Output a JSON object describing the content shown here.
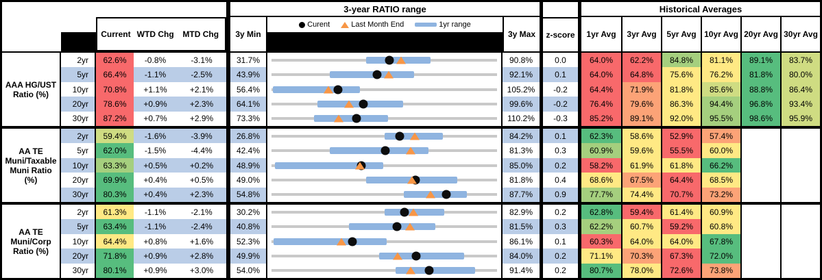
{
  "palette": {
    "red": "#F8696B",
    "orange": "#FCA377",
    "yellow": "#FFE984",
    "yellowgreen": "#CFDC82",
    "lightgreen": "#A5CF7E",
    "green": "#57BD7E",
    "stripe": "#BACDE7",
    "bar": "#8FB4E0",
    "track": "#C9C9C9",
    "triangle": "#F79646",
    "dot": "#000000"
  },
  "header": {
    "ratio_range_title": "3-year RATIO range",
    "hist_title": "Historical Averages",
    "columns": {
      "current": "Current",
      "wtd": "WTD Chg",
      "mtd": "MTD Chg",
      "min": "3y Min",
      "max": "3y Max",
      "zscore": "z-score"
    },
    "hist_columns": [
      "1yr Avg",
      "3yr Avg",
      "5yr Avg",
      "10yr Avg",
      "20yr Avg",
      "30yr Avg"
    ],
    "legend": {
      "current": "Curent",
      "last_month": "Last Month End",
      "range": "1yr range"
    }
  },
  "sections": [
    {
      "label_lines": [
        "AAA HG/UST",
        "Ratio (%)"
      ],
      "rows": [
        {
          "tenor": "2yr",
          "current": "62.6%",
          "current_color": "red",
          "wtd": "-0.8%",
          "mtd": "-3.1%",
          "min": "31.7%",
          "max": "90.8%",
          "zscore": "0.0",
          "chart": {
            "min": 31.7,
            "max": 90.8,
            "bar_low": 56.4,
            "bar_high": 73.4,
            "dot": 62.6,
            "tri": 65.7
          },
          "hist": [
            {
              "v": "64.0%",
              "c": "red"
            },
            {
              "v": "62.2%",
              "c": "red"
            },
            {
              "v": "84.8%",
              "c": "lightgreen"
            },
            {
              "v": "81.1%",
              "c": "yellow"
            },
            {
              "v": "89.1%",
              "c": "green"
            },
            {
              "v": "83.7%",
              "c": "yellowgreen"
            }
          ]
        },
        {
          "tenor": "5yr",
          "current": "66.4%",
          "current_color": "red",
          "wtd": "-1.1%",
          "mtd": "-2.5%",
          "min": "43.9%",
          "max": "92.1%",
          "zscore": "0.1",
          "chart": {
            "min": 43.9,
            "max": 92.1,
            "bar_low": 56.4,
            "bar_high": 74.4,
            "dot": 66.4,
            "tri": 68.9
          },
          "hist": [
            {
              "v": "64.0%",
              "c": "red"
            },
            {
              "v": "64.8%",
              "c": "red"
            },
            {
              "v": "75.6%",
              "c": "yellow"
            },
            {
              "v": "76.2%",
              "c": "yellow"
            },
            {
              "v": "81.8%",
              "c": "green"
            },
            {
              "v": "80.0%",
              "c": "yellowgreen"
            }
          ]
        },
        {
          "tenor": "10yr",
          "current": "70.8%",
          "current_color": "red",
          "wtd": "+1.1%",
          "mtd": "+2.1%",
          "min": "56.4%",
          "max": "105.2%",
          "zscore": "-0.2",
          "chart": {
            "min": 56.4,
            "max": 105.2,
            "bar_low": 56.7,
            "bar_high": 75.6,
            "dot": 70.8,
            "tri": 68.7
          },
          "hist": [
            {
              "v": "64.4%",
              "c": "red"
            },
            {
              "v": "71.9%",
              "c": "orange"
            },
            {
              "v": "81.8%",
              "c": "yellow"
            },
            {
              "v": "85.6%",
              "c": "yellowgreen"
            },
            {
              "v": "88.8%",
              "c": "green"
            },
            {
              "v": "86.4%",
              "c": "yellowgreen"
            }
          ]
        },
        {
          "tenor": "20yr",
          "current": "78.6%",
          "current_color": "red",
          "wtd": "+0.9%",
          "mtd": "+2.3%",
          "min": "64.1%",
          "max": "99.6%",
          "zscore": "-0.2",
          "chart": {
            "min": 64.1,
            "max": 99.6,
            "bar_low": 71.3,
            "bar_high": 84.8,
            "dot": 78.6,
            "tri": 76.3
          },
          "hist": [
            {
              "v": "76.4%",
              "c": "red"
            },
            {
              "v": "79.6%",
              "c": "orange"
            },
            {
              "v": "86.3%",
              "c": "yellow"
            },
            {
              "v": "94.4%",
              "c": "lightgreen"
            },
            {
              "v": "96.8%",
              "c": "green"
            },
            {
              "v": "93.4%",
              "c": "yellowgreen"
            }
          ]
        },
        {
          "tenor": "30yr",
          "current": "87.2%",
          "current_color": "red",
          "wtd": "+0.7%",
          "mtd": "+2.9%",
          "min": "73.3%",
          "max": "110.2%",
          "zscore": "-0.3",
          "chart": {
            "min": 73.3,
            "max": 110.2,
            "bar_low": 80.2,
            "bar_high": 92.4,
            "dot": 87.2,
            "tri": 84.3
          },
          "hist": [
            {
              "v": "85.2%",
              "c": "red"
            },
            {
              "v": "89.1%",
              "c": "orange"
            },
            {
              "v": "92.0%",
              "c": "yellow"
            },
            {
              "v": "95.5%",
              "c": "lightgreen"
            },
            {
              "v": "98.6%",
              "c": "green"
            },
            {
              "v": "95.9%",
              "c": "yellowgreen"
            }
          ]
        }
      ]
    },
    {
      "label_lines": [
        "AA TE",
        "Muni/Taxable",
        "Muni Ratio",
        "(%)"
      ],
      "rows": [
        {
          "tenor": "2yr",
          "current": "59.4%",
          "current_color": "yellowgreen",
          "wtd": "-1.6%",
          "mtd": "-3.9%",
          "min": "26.8%",
          "max": "84.2%",
          "zscore": "0.1",
          "chart": {
            "min": 26.8,
            "max": 84.2,
            "bar_low": 55.5,
            "bar_high": 70.4,
            "dot": 59.4,
            "tri": 63.3
          },
          "hist": [
            {
              "v": "62.3%",
              "c": "green"
            },
            {
              "v": "58.6%",
              "c": "yellow"
            },
            {
              "v": "52.9%",
              "c": "red"
            },
            {
              "v": "57.4%",
              "c": "orange"
            },
            {
              "v": "",
              "c": null
            },
            {
              "v": "",
              "c": null
            }
          ]
        },
        {
          "tenor": "5yr",
          "current": "62.0%",
          "current_color": "green",
          "wtd": "-1.5%",
          "mtd": "-4.4%",
          "min": "42.4%",
          "max": "81.3%",
          "zscore": "0.3",
          "chart": {
            "min": 42.4,
            "max": 81.3,
            "bar_low": 52.5,
            "bar_high": 69.5,
            "dot": 62.0,
            "tri": 66.4
          },
          "hist": [
            {
              "v": "60.9%",
              "c": "lightgreen"
            },
            {
              "v": "59.6%",
              "c": "yellow"
            },
            {
              "v": "55.5%",
              "c": "red"
            },
            {
              "v": "60.0%",
              "c": "yellow"
            },
            {
              "v": "",
              "c": null
            },
            {
              "v": "",
              "c": null
            }
          ]
        },
        {
          "tenor": "10yr",
          "current": "63.3%",
          "current_color": "lightgreen",
          "wtd": "+0.5%",
          "mtd": "+0.2%",
          "min": "48.9%",
          "max": "85.0%",
          "zscore": "0.2",
          "chart": {
            "min": 48.9,
            "max": 85.0,
            "bar_low": 49.5,
            "bar_high": 66.8,
            "dot": 63.3,
            "tri": 63.1
          },
          "hist": [
            {
              "v": "58.2%",
              "c": "red"
            },
            {
              "v": "61.9%",
              "c": "yellow"
            },
            {
              "v": "61.8%",
              "c": "yellow"
            },
            {
              "v": "66.2%",
              "c": "green"
            },
            {
              "v": "",
              "c": null
            },
            {
              "v": "",
              "c": null
            }
          ]
        },
        {
          "tenor": "20yr",
          "current": "69.9%",
          "current_color": "green",
          "wtd": "+0.4%",
          "mtd": "+0.5%",
          "min": "49.0%",
          "max": "81.8%",
          "zscore": "0.4",
          "chart": {
            "min": 49.0,
            "max": 81.8,
            "bar_low": 62.8,
            "bar_high": 76.0,
            "dot": 69.9,
            "tri": 69.4
          },
          "hist": [
            {
              "v": "68.6%",
              "c": "yellow"
            },
            {
              "v": "67.5%",
              "c": "orange"
            },
            {
              "v": "64.4%",
              "c": "red"
            },
            {
              "v": "68.5%",
              "c": "yellow"
            },
            {
              "v": "",
              "c": null
            },
            {
              "v": "",
              "c": null
            }
          ]
        },
        {
          "tenor": "30yr",
          "current": "80.3%",
          "current_color": "green",
          "wtd": "+0.4%",
          "mtd": "+2.3%",
          "min": "54.8%",
          "max": "87.7%",
          "zscore": "0.9",
          "chart": {
            "min": 54.8,
            "max": 87.7,
            "bar_low": 74.1,
            "bar_high": 83.3,
            "dot": 80.3,
            "tri": 78.0
          },
          "hist": [
            {
              "v": "77.7%",
              "c": "lightgreen"
            },
            {
              "v": "74.4%",
              "c": "yellow"
            },
            {
              "v": "70.7%",
              "c": "red"
            },
            {
              "v": "73.2%",
              "c": "orange"
            },
            {
              "v": "",
              "c": null
            },
            {
              "v": "",
              "c": null
            }
          ]
        }
      ]
    },
    {
      "label_lines": [
        "AA TE",
        "Muni/Corp",
        "Ratio (%)"
      ],
      "rows": [
        {
          "tenor": "2yr",
          "current": "61.3%",
          "current_color": "yellow",
          "wtd": "-1.1%",
          "mtd": "-2.1%",
          "min": "30.2%",
          "max": "82.9%",
          "zscore": "0.2",
          "chart": {
            "min": 30.2,
            "max": 82.9,
            "bar_low": 56.6,
            "bar_high": 70.6,
            "dot": 61.3,
            "tri": 63.4
          },
          "hist": [
            {
              "v": "62.8%",
              "c": "green"
            },
            {
              "v": "59.4%",
              "c": "red"
            },
            {
              "v": "61.4%",
              "c": "yellow"
            },
            {
              "v": "60.9%",
              "c": "yellow"
            },
            {
              "v": "",
              "c": null
            },
            {
              "v": "",
              "c": null
            }
          ]
        },
        {
          "tenor": "5yr",
          "current": "63.4%",
          "current_color": "green",
          "wtd": "-1.1%",
          "mtd": "-2.4%",
          "min": "40.8%",
          "max": "81.5%",
          "zscore": "0.3",
          "chart": {
            "min": 40.8,
            "max": 81.5,
            "bar_low": 54.8,
            "bar_high": 70.4,
            "dot": 63.4,
            "tri": 65.8
          },
          "hist": [
            {
              "v": "62.2%",
              "c": "lightgreen"
            },
            {
              "v": "60.7%",
              "c": "yellow"
            },
            {
              "v": "59.2%",
              "c": "red"
            },
            {
              "v": "60.8%",
              "c": "yellow"
            },
            {
              "v": "",
              "c": null
            },
            {
              "v": "",
              "c": null
            }
          ]
        },
        {
          "tenor": "10yr",
          "current": "64.4%",
          "current_color": "yellow",
          "wtd": "+0.8%",
          "mtd": "+1.6%",
          "min": "52.3%",
          "max": "86.1%",
          "zscore": "0.1",
          "chart": {
            "min": 52.3,
            "max": 86.1,
            "bar_low": 52.6,
            "bar_high": 69.6,
            "dot": 64.4,
            "tri": 62.8
          },
          "hist": [
            {
              "v": "60.3%",
              "c": "red"
            },
            {
              "v": "64.0%",
              "c": "yellow"
            },
            {
              "v": "64.0%",
              "c": "yellow"
            },
            {
              "v": "67.8%",
              "c": "green"
            },
            {
              "v": "",
              "c": null
            },
            {
              "v": "",
              "c": null
            }
          ]
        },
        {
          "tenor": "20yr",
          "current": "71.8%",
          "current_color": "green",
          "wtd": "+0.9%",
          "mtd": "+2.8%",
          "min": "49.9%",
          "max": "84.0%",
          "zscore": "0.2",
          "chart": {
            "min": 49.9,
            "max": 84.0,
            "bar_low": 66.2,
            "bar_high": 79.0,
            "dot": 71.8,
            "tri": 69.0
          },
          "hist": [
            {
              "v": "71.1%",
              "c": "yellow"
            },
            {
              "v": "70.3%",
              "c": "orange"
            },
            {
              "v": "67.3%",
              "c": "red"
            },
            {
              "v": "72.0%",
              "c": "green"
            },
            {
              "v": "",
              "c": null
            },
            {
              "v": "",
              "c": null
            }
          ]
        },
        {
          "tenor": "30yr",
          "current": "80.1%",
          "current_color": "green",
          "wtd": "+0.9%",
          "mtd": "+3.0%",
          "min": "54.0%",
          "max": "91.4%",
          "zscore": "0.2",
          "chart": {
            "min": 54.0,
            "max": 91.4,
            "bar_low": 74.6,
            "bar_high": 87.8,
            "dot": 80.1,
            "tri": 77.1
          },
          "hist": [
            {
              "v": "80.7%",
              "c": "green"
            },
            {
              "v": "78.0%",
              "c": "yellow"
            },
            {
              "v": "72.6%",
              "c": "red"
            },
            {
              "v": "73.8%",
              "c": "orange"
            },
            {
              "v": "",
              "c": null
            },
            {
              "v": "",
              "c": null
            }
          ]
        }
      ]
    }
  ]
}
